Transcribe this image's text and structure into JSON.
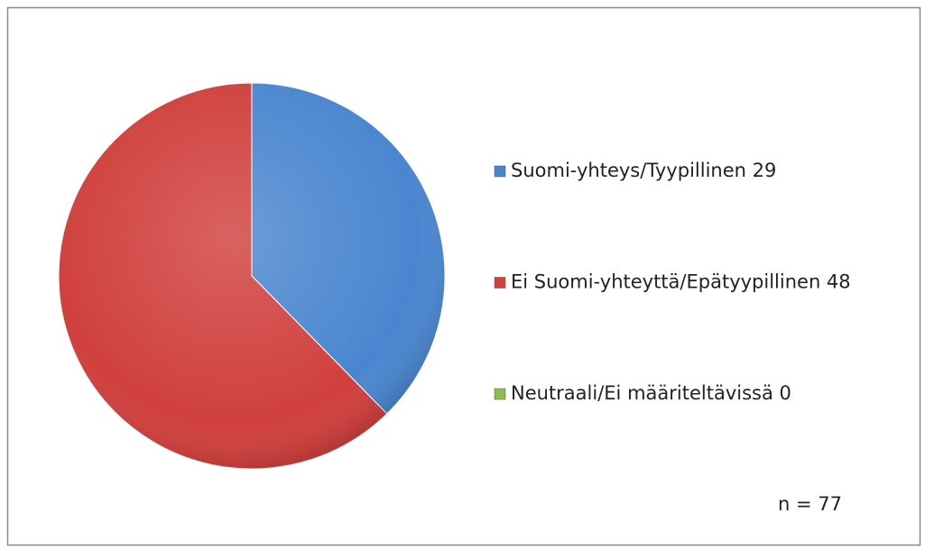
{
  "chart_data": {
    "type": "pie",
    "categories": [
      "Suomi-yhteys/Tyypillinen 29",
      "Ei Suomi-yhteyttä/Epätyypillinen 48",
      "Neutraali/Ei määriteltävissä 0"
    ],
    "values": [
      29,
      48,
      0
    ],
    "colors": [
      "#4a86cf",
      "#d0403d",
      "#8cbf4a"
    ],
    "annotation": "n = 77"
  }
}
